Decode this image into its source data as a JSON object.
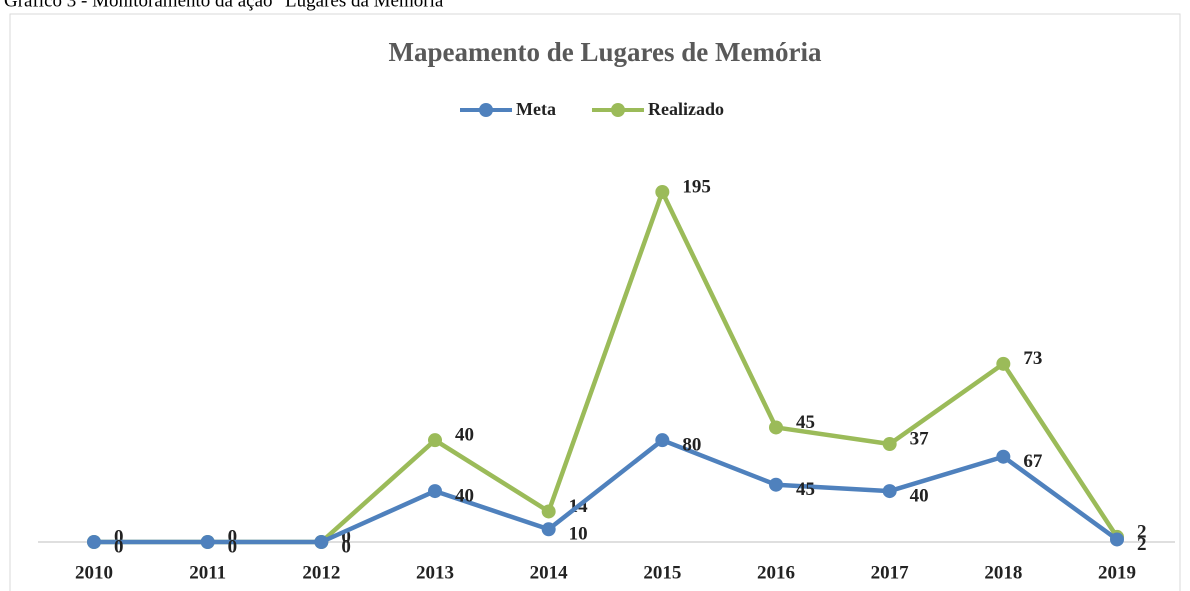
{
  "caption": "Gráfico 3 - Monitoramento da ação \"Lugares da Memória\"",
  "chart_data": {
    "type": "line",
    "stacked": true,
    "title": "Mapeamento de Lugares de Memória",
    "categories": [
      "2010",
      "2011",
      "2012",
      "2013",
      "2014",
      "2015",
      "2016",
      "2017",
      "2018",
      "2019"
    ],
    "series": [
      {
        "name": "Meta",
        "color": "#4f81bd",
        "values": [
          0,
          0,
          0,
          40,
          10,
          80,
          45,
          40,
          67,
          2
        ]
      },
      {
        "name": "Realizado",
        "color": "#9bbb59",
        "values": [
          0,
          0,
          0,
          40,
          14,
          195,
          45,
          37,
          73,
          2
        ]
      }
    ],
    "legend": "top"
  }
}
